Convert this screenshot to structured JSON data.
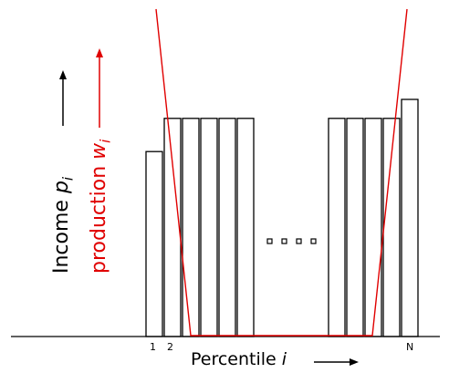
{
  "axes": {
    "y_label_black": "Income",
    "y_label_black_var": "p",
    "y_label_black_sub": "i",
    "y_label_red": "production",
    "y_label_red_var": "w",
    "y_label_red_sub": "i",
    "x_label": "Percentile",
    "x_label_var": "i"
  },
  "tick_labels": [
    "1",
    "2",
    "N"
  ],
  "ellipsis_dots": 4,
  "colors": {
    "bars": "#000000",
    "production_curve": "#e00000",
    "axis": "#000000"
  },
  "bars": {
    "left_group": [
      0.78,
      0.92,
      0.92,
      0.92,
      0.92,
      0.92
    ],
    "right_group": [
      0.92,
      0.92,
      0.92,
      0.92,
      1.0
    ]
  }
}
